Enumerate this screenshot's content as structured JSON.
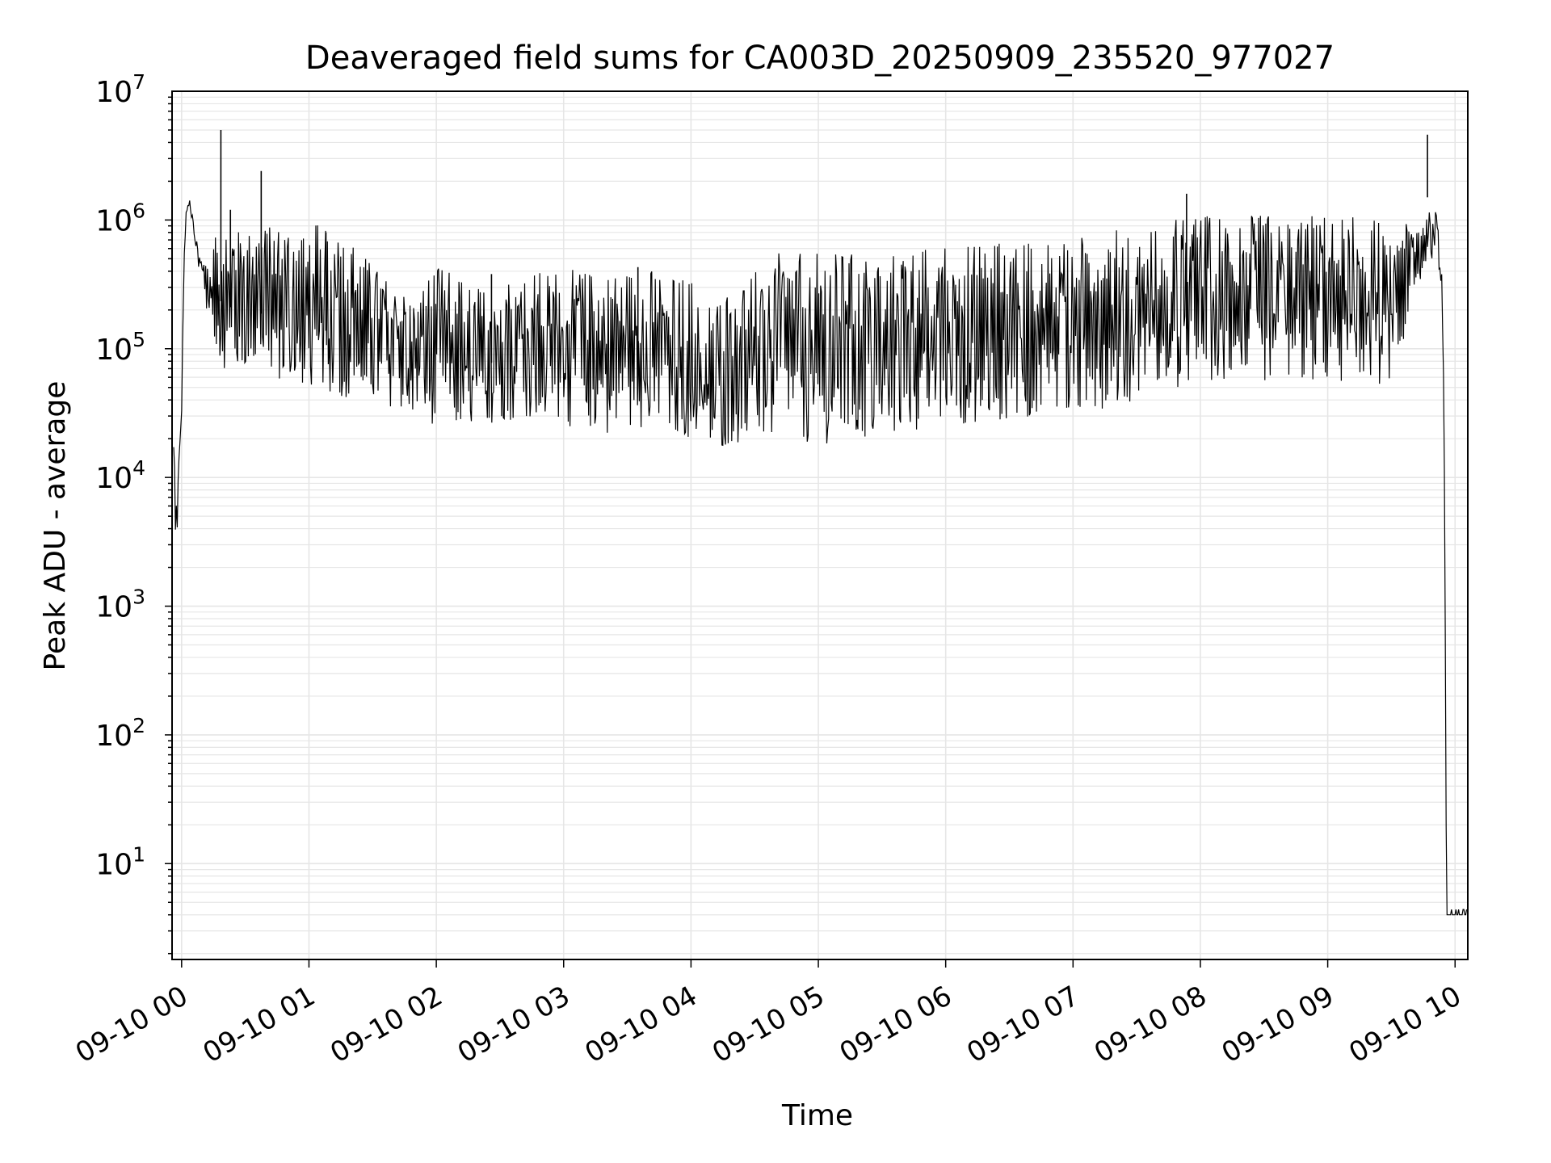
{
  "chart_data": {
    "type": "line",
    "title": "Deaveraged field sums for CA003D_20250909_235520_977027",
    "xlabel": "Time",
    "ylabel": "Peak ADU - average",
    "yscale": "log",
    "ylim": [
      1.8,
      10000000
    ],
    "xlim": [
      "2025-09-09 23:55:30",
      "2025-09-10 10:06:00"
    ],
    "grid": true,
    "grid_color": "#e6e6e6",
    "line_color": "#000000",
    "x_ticks": [
      {
        "value": "2025-09-10 00:00",
        "label": "09-10 00"
      },
      {
        "value": "2025-09-10 01:00",
        "label": "09-10 01"
      },
      {
        "value": "2025-09-10 02:00",
        "label": "09-10 02"
      },
      {
        "value": "2025-09-10 03:00",
        "label": "09-10 03"
      },
      {
        "value": "2025-09-10 04:00",
        "label": "09-10 04"
      },
      {
        "value": "2025-09-10 05:00",
        "label": "09-10 05"
      },
      {
        "value": "2025-09-10 06:00",
        "label": "09-10 06"
      },
      {
        "value": "2025-09-10 07:00",
        "label": "09-10 07"
      },
      {
        "value": "2025-09-10 08:00",
        "label": "09-10 08"
      },
      {
        "value": "2025-09-10 09:00",
        "label": "09-10 09"
      },
      {
        "value": "2025-09-10 10:00",
        "label": "09-10 10"
      }
    ],
    "y_ticks": [
      {
        "value": 10,
        "base": "10",
        "exp": "1"
      },
      {
        "value": 100,
        "base": "10",
        "exp": "2"
      },
      {
        "value": 1000,
        "base": "10",
        "exp": "3"
      },
      {
        "value": 10000,
        "base": "10",
        "exp": "4"
      },
      {
        "value": 100000,
        "base": "10",
        "exp": "5"
      },
      {
        "value": 1000000,
        "base": "10",
        "exp": "6"
      },
      {
        "value": 10000000,
        "base": "10",
        "exp": "7"
      }
    ],
    "series": [
      {
        "upper_envelope": [
          [
            "2025-09-09 23:55:30",
            20000
          ],
          [
            "2025-09-09 23:56:00",
            25000
          ],
          [
            "2025-09-09 23:57:00",
            12000
          ],
          [
            "2025-09-09 23:58:00",
            8000
          ],
          [
            "2025-09-09 23:59:00",
            20000
          ],
          [
            "2025-09-10 00:00:00",
            60000
          ],
          [
            "2025-09-10 00:01:00",
            500000
          ],
          [
            "2025-09-10 00:02:00",
            1200000
          ],
          [
            "2025-09-10 00:03:00",
            1500000
          ],
          [
            "2025-09-10 00:04:00",
            1400000
          ],
          [
            "2025-09-10 00:06:00",
            900000
          ],
          [
            "2025-09-10 00:08:00",
            600000
          ],
          [
            "2025-09-10 00:10:00",
            450000
          ],
          [
            "2025-09-10 00:15:00",
            700000
          ],
          [
            "2025-09-10 00:20:00",
            900000
          ],
          [
            "2025-09-10 00:30:00",
            800000
          ],
          [
            "2025-09-10 00:40:00",
            900000
          ],
          [
            "2025-09-10 00:50:00",
            900000
          ],
          [
            "2025-09-10 01:00:00",
            950000
          ],
          [
            "2025-09-10 01:10:00",
            900000
          ],
          [
            "2025-09-10 01:20:00",
            700000
          ],
          [
            "2025-09-10 01:30:00",
            450000
          ],
          [
            "2025-09-10 01:40:00",
            300000
          ],
          [
            "2025-09-10 01:50:00",
            250000
          ],
          [
            "2025-09-10 02:00:00",
            450000
          ],
          [
            "2025-09-10 02:20:00",
            300000
          ],
          [
            "2025-09-10 02:40:00",
            380000
          ],
          [
            "2025-09-10 03:00:00",
            420000
          ],
          [
            "2025-09-10 03:20:00",
            380000
          ],
          [
            "2025-09-10 03:40:00",
            420000
          ],
          [
            "2025-09-10 04:00:00",
            350000
          ],
          [
            "2025-09-10 04:10:00",
            250000
          ],
          [
            "2025-09-10 04:20:00",
            300000
          ],
          [
            "2025-09-10 04:30:00",
            400000
          ],
          [
            "2025-09-10 04:40:00",
            550000
          ],
          [
            "2025-09-10 05:00:00",
            550000
          ],
          [
            "2025-09-10 05:30:00",
            560000
          ],
          [
            "2025-09-10 06:00:00",
            650000
          ],
          [
            "2025-09-10 06:30:00",
            750000
          ],
          [
            "2025-09-10 07:00:00",
            750000
          ],
          [
            "2025-09-10 07:30:00",
            900000
          ],
          [
            "2025-09-10 08:00:00",
            1100000
          ],
          [
            "2025-09-10 08:30:00",
            1100000
          ],
          [
            "2025-09-10 09:00:00",
            1100000
          ],
          [
            "2025-09-10 09:30:00",
            1000000
          ],
          [
            "2025-09-10 09:40:00",
            900000
          ],
          [
            "2025-09-10 09:47:00",
            1100000
          ],
          [
            "2025-09-10 09:50:00",
            1300000
          ],
          [
            "2025-09-10 09:52:00",
            1000000
          ],
          [
            "2025-09-10 09:54:00",
            400000
          ],
          [
            "2025-09-10 09:55:00",
            20000
          ],
          [
            "2025-09-10 09:56:00",
            4
          ],
          [
            "2025-09-10 10:06:00",
            4
          ]
        ],
        "lower_envelope": [
          [
            "2025-09-09 23:55:30",
            15000
          ],
          [
            "2025-09-09 23:56:00",
            9000
          ],
          [
            "2025-09-09 23:57:00",
            2400
          ],
          [
            "2025-09-09 23:58:00",
            3000
          ],
          [
            "2025-09-09 23:59:00",
            4000
          ],
          [
            "2025-09-10 00:00:00",
            20000
          ],
          [
            "2025-09-10 00:01:00",
            300000
          ],
          [
            "2025-09-10 00:02:00",
            900000
          ],
          [
            "2025-09-10 00:03:00",
            1300000
          ],
          [
            "2025-09-10 00:04:00",
            1200000
          ],
          [
            "2025-09-10 00:06:00",
            700000
          ],
          [
            "2025-09-10 00:08:00",
            400000
          ],
          [
            "2025-09-10 00:10:00",
            300000
          ],
          [
            "2025-09-10 00:15:00",
            100000
          ],
          [
            "2025-09-10 00:20:00",
            70000
          ],
          [
            "2025-09-10 00:30:00",
            70000
          ],
          [
            "2025-09-10 00:40:00",
            60000
          ],
          [
            "2025-09-10 00:50:00",
            55000
          ],
          [
            "2025-09-10 01:00:00",
            50000
          ],
          [
            "2025-09-10 01:10:00",
            45000
          ],
          [
            "2025-09-10 01:20:00",
            40000
          ],
          [
            "2025-09-10 01:30:00",
            38000
          ],
          [
            "2025-09-10 01:40:00",
            35000
          ],
          [
            "2025-09-10 01:50:00",
            30000
          ],
          [
            "2025-09-10 02:00:00",
            25000
          ],
          [
            "2025-09-10 02:20:00",
            25000
          ],
          [
            "2025-09-10 02:40:00",
            28000
          ],
          [
            "2025-09-10 03:00:00",
            25000
          ],
          [
            "2025-09-10 03:20:00",
            22000
          ],
          [
            "2025-09-10 03:40:00",
            22000
          ],
          [
            "2025-09-10 04:00:00",
            20000
          ],
          [
            "2025-09-10 04:10:00",
            16000
          ],
          [
            "2025-09-10 04:20:00",
            18000
          ],
          [
            "2025-09-10 04:30:00",
            20000
          ],
          [
            "2025-09-10 04:40:00",
            20000
          ],
          [
            "2025-09-10 05:00:00",
            18000
          ],
          [
            "2025-09-10 05:30:00",
            20000
          ],
          [
            "2025-09-10 06:00:00",
            25000
          ],
          [
            "2025-09-10 06:30:00",
            28000
          ],
          [
            "2025-09-10 07:00:00",
            30000
          ],
          [
            "2025-09-10 07:30:00",
            40000
          ],
          [
            "2025-09-10 08:00:00",
            50000
          ],
          [
            "2025-09-10 08:30:00",
            55000
          ],
          [
            "2025-09-10 09:00:00",
            55000
          ],
          [
            "2025-09-10 09:30:00",
            50000
          ],
          [
            "2025-09-10 09:40:00",
            200000
          ],
          [
            "2025-09-10 09:47:00",
            500000
          ],
          [
            "2025-09-10 09:50:00",
            500000
          ],
          [
            "2025-09-10 09:52:00",
            500000
          ],
          [
            "2025-09-10 09:54:00",
            200000
          ],
          [
            "2025-09-10 09:55:00",
            10000
          ],
          [
            "2025-09-10 09:56:00",
            4
          ],
          [
            "2025-09-10 10:06:00",
            4
          ]
        ],
        "spikes": [
          [
            "2025-09-10 00:18:30",
            5000000
          ],
          [
            "2025-09-10 00:37:30",
            2400000
          ],
          [
            "2025-09-10 00:23:00",
            1200000
          ],
          [
            "2025-09-10 01:08:00",
            800000
          ],
          [
            "2025-09-10 07:53:30",
            1600000
          ],
          [
            "2025-09-10 09:47:00",
            4600000
          ],
          [
            "2025-09-10 02:26:00",
            380000
          ],
          [
            "2025-09-10 03:35:00",
            430000
          ]
        ]
      }
    ]
  }
}
